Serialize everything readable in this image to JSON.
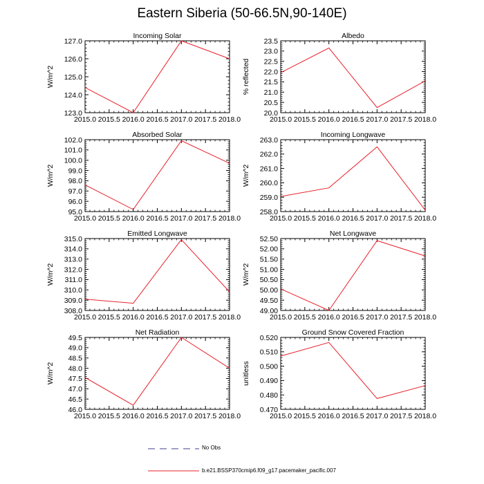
{
  "title": "Eastern Siberia (50-66.5N,90-140E)",
  "legend": {
    "obs": {
      "label": "No Obs",
      "color": "#3d3d8f",
      "style": "dashed"
    },
    "model": {
      "label": "b.e21.BSSP370cmip6.f09_g17.pacemaker_pacific.007",
      "color": "#e8202a",
      "style": "solid"
    }
  },
  "chart_data": [
    {
      "type": "line",
      "title": "Incoming Solar",
      "ylabel": "W/m^2",
      "x": [
        2015.0,
        2016.0,
        2017.0,
        2018.0
      ],
      "xlim": [
        2015.0,
        2018.0
      ],
      "xticks": [
        "2015.0",
        "2015.5",
        "2016.0",
        "2016.5",
        "2017.0",
        "2017.5",
        "2018.0"
      ],
      "ylim": [
        123.0,
        127.0
      ],
      "yticks": [
        "123.0",
        "124.0",
        "125.0",
        "126.0",
        "127.0"
      ],
      "series": [
        {
          "values": [
            124.4,
            123.0,
            127.0,
            126.0
          ]
        }
      ]
    },
    {
      "type": "line",
      "title": "Albedo",
      "ylabel": "% reflected",
      "x": [
        2015.0,
        2016.0,
        2017.0,
        2018.0
      ],
      "xlim": [
        2015.0,
        2018.0
      ],
      "xticks": [
        "2015.0",
        "2015.5",
        "2016.0",
        "2016.5",
        "2017.0",
        "2017.5",
        "2018.0"
      ],
      "ylim": [
        20.0,
        23.5
      ],
      "yticks": [
        "20.0",
        "20.5",
        "21.0",
        "21.5",
        "22.0",
        "22.5",
        "23.0",
        "23.5"
      ],
      "series": [
        {
          "values": [
            21.95,
            23.15,
            20.25,
            21.55
          ]
        }
      ]
    },
    {
      "type": "line",
      "title": "Absorbed Solar",
      "ylabel": "W/m^2",
      "x": [
        2015.0,
        2016.0,
        2017.0,
        2018.0
      ],
      "xlim": [
        2015.0,
        2018.0
      ],
      "xticks": [
        "2015.0",
        "2015.5",
        "2016.0",
        "2016.5",
        "2017.0",
        "2017.5",
        "2018.0"
      ],
      "ylim": [
        95.0,
        102.0
      ],
      "yticks": [
        "95.0",
        "96.0",
        "97.0",
        "98.0",
        "99.0",
        "100.0",
        "101.0",
        "102.0"
      ],
      "series": [
        {
          "values": [
            97.6,
            95.2,
            101.9,
            99.7
          ]
        }
      ]
    },
    {
      "type": "line",
      "title": "Incoming Longwave",
      "ylabel": "W/m^2",
      "x": [
        2015.0,
        2016.0,
        2017.0,
        2018.0
      ],
      "xlim": [
        2015.0,
        2018.0
      ],
      "xticks": [
        "2015.0",
        "2015.5",
        "2016.0",
        "2016.5",
        "2017.0",
        "2017.5",
        "2018.0"
      ],
      "ylim": [
        258.0,
        263.0
      ],
      "yticks": [
        "258.0",
        "259.0",
        "260.0",
        "261.0",
        "262.0",
        "263.0"
      ],
      "series": [
        {
          "values": [
            259.05,
            259.65,
            262.5,
            258.1
          ]
        }
      ]
    },
    {
      "type": "line",
      "title": "Emitted Longwave",
      "ylabel": "W/m^2",
      "x": [
        2015.0,
        2016.0,
        2017.0,
        2018.0
      ],
      "xlim": [
        2015.0,
        2018.0
      ],
      "xticks": [
        "2015.0",
        "2015.5",
        "2016.0",
        "2016.5",
        "2017.0",
        "2017.5",
        "2018.0"
      ],
      "ylim": [
        308.0,
        315.0
      ],
      "yticks": [
        "308.0",
        "309.0",
        "310.0",
        "311.0",
        "312.0",
        "313.0",
        "314.0",
        "315.0"
      ],
      "series": [
        {
          "values": [
            309.1,
            308.7,
            314.9,
            309.8
          ]
        }
      ]
    },
    {
      "type": "line",
      "title": "Net Longwave",
      "ylabel": "W/m^2",
      "x": [
        2015.0,
        2016.0,
        2017.0,
        2018.0
      ],
      "xlim": [
        2015.0,
        2018.0
      ],
      "xticks": [
        "2015.0",
        "2015.5",
        "2016.0",
        "2016.5",
        "2017.0",
        "2017.5",
        "2018.0"
      ],
      "ylim": [
        49.0,
        52.5
      ],
      "yticks": [
        "49.00",
        "49.50",
        "50.00",
        "50.50",
        "51.00",
        "51.50",
        "52.00",
        "52.50"
      ],
      "series": [
        {
          "values": [
            50.05,
            49.0,
            52.4,
            51.65
          ]
        }
      ]
    },
    {
      "type": "line",
      "title": "Net Radiation",
      "ylabel": "W/m^2",
      "x": [
        2015.0,
        2016.0,
        2017.0,
        2018.0
      ],
      "xlim": [
        2015.0,
        2018.0
      ],
      "xticks": [
        "2015.0",
        "2015.5",
        "2016.0",
        "2016.5",
        "2017.0",
        "2017.5",
        "2018.0"
      ],
      "ylim": [
        46.0,
        49.5
      ],
      "yticks": [
        "46.0",
        "46.5",
        "47.0",
        "47.5",
        "48.0",
        "48.5",
        "49.0",
        "49.5"
      ],
      "series": [
        {
          "values": [
            47.55,
            46.2,
            49.5,
            48.0
          ]
        }
      ]
    },
    {
      "type": "line",
      "title": "Ground Snow Covered Fraction",
      "ylabel": "unitless",
      "x": [
        2015.0,
        2016.0,
        2017.0,
        2018.0
      ],
      "xlim": [
        2015.0,
        2018.0
      ],
      "xticks": [
        "2015.0",
        "2015.5",
        "2016.0",
        "2016.5",
        "2017.0",
        "2017.5",
        "2018.0"
      ],
      "ylim": [
        0.47,
        0.52
      ],
      "yticks": [
        "0.470",
        "0.480",
        "0.490",
        "0.500",
        "0.510",
        "0.520"
      ],
      "series": [
        {
          "values": [
            0.507,
            0.5165,
            0.4775,
            0.4865
          ]
        }
      ]
    }
  ]
}
